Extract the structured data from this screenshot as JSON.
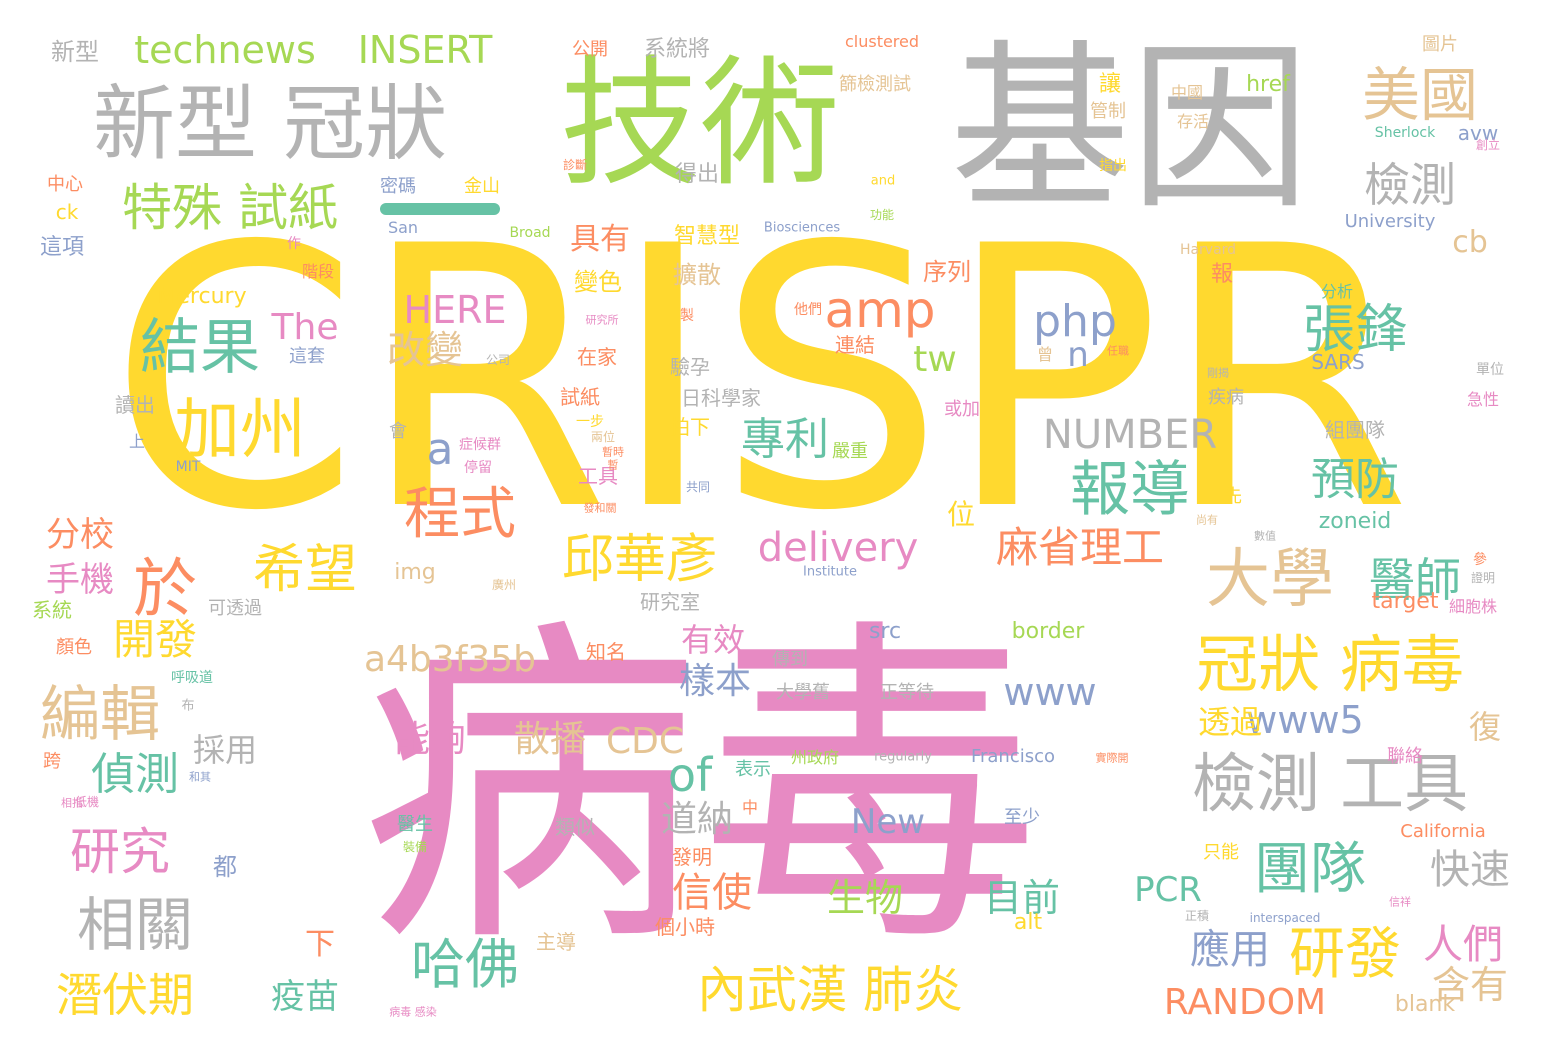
{
  "colors": {
    "pink": "#e78ac3",
    "yellow": "#ffd92f",
    "gray": "#b3b3b3",
    "green": "#a6d854",
    "teal": "#66c2a5",
    "orange": "#fc8d62",
    "blue": "#8da0cb",
    "tan": "#e5c494"
  },
  "words": [
    {
      "text": "CRISPR",
      "color": "yellow"
    },
    {
      "text": "病毒",
      "color": "pink"
    },
    {
      "text": "基因",
      "color": "gray"
    },
    {
      "text": "技術",
      "color": "green"
    },
    {
      "text": "新型 冠狀",
      "color": "gray"
    },
    {
      "text": "technews",
      "color": "green"
    },
    {
      "text": "INSERT",
      "color": "green"
    },
    {
      "text": "新型",
      "color": "gray"
    },
    {
      "text": "特殊 試紙",
      "color": "green"
    },
    {
      "text": "美國",
      "color": "tan"
    },
    {
      "text": "檢測",
      "color": "gray"
    },
    {
      "text": "結果",
      "color": "teal"
    },
    {
      "text": "加州",
      "color": "yellow"
    },
    {
      "text": "amp",
      "color": "orange"
    },
    {
      "text": "php",
      "color": "blue"
    },
    {
      "text": "HERE",
      "color": "pink"
    },
    {
      "text": "改變",
      "color": "tan"
    },
    {
      "text": "The",
      "color": "pink"
    },
    {
      "text": "tw",
      "color": "green"
    },
    {
      "text": "n",
      "color": "blue"
    },
    {
      "text": "張鋒",
      "color": "teal"
    },
    {
      "text": "報導",
      "color": "teal"
    },
    {
      "text": "程式",
      "color": "orange"
    },
    {
      "text": "專利",
      "color": "teal"
    },
    {
      "text": "a",
      "color": "blue"
    },
    {
      "text": "NUMBER",
      "color": "gray"
    },
    {
      "text": "預防",
      "color": "teal"
    },
    {
      "text": "大學",
      "color": "tan"
    },
    {
      "text": "於",
      "color": "orange"
    },
    {
      "text": "希望",
      "color": "yellow"
    },
    {
      "text": "邱華彥",
      "color": "yellow"
    },
    {
      "text": "delivery",
      "color": "pink"
    },
    {
      "text": "麻省理工",
      "color": "orange"
    },
    {
      "text": "醫師",
      "color": "teal"
    },
    {
      "text": "冠狀 病毒",
      "color": "yellow"
    },
    {
      "text": "a4b3f35b",
      "color": "tan"
    },
    {
      "text": "www",
      "color": "blue"
    },
    {
      "text": "www5",
      "color": "blue"
    },
    {
      "text": "of",
      "color": "teal"
    },
    {
      "text": "檢測 工具",
      "color": "gray"
    },
    {
      "text": "編輯",
      "color": "tan"
    },
    {
      "text": "開發",
      "color": "yellow"
    },
    {
      "text": "分校",
      "color": "orange"
    },
    {
      "text": "手機",
      "color": "pink"
    },
    {
      "text": "偵測",
      "color": "teal"
    },
    {
      "text": "研究",
      "color": "pink"
    },
    {
      "text": "相關",
      "color": "gray"
    },
    {
      "text": "潛伏期",
      "color": "yellow"
    },
    {
      "text": "團隊",
      "color": "teal"
    },
    {
      "text": "快速",
      "color": "gray"
    },
    {
      "text": "人們",
      "color": "pink"
    },
    {
      "text": "研發",
      "color": "yellow"
    },
    {
      "text": "含有",
      "color": "tan"
    },
    {
      "text": "應用",
      "color": "blue"
    },
    {
      "text": "RANDOM",
      "color": "orange"
    },
    {
      "text": "哈佛",
      "color": "teal"
    },
    {
      "text": "內武漢 肺炎",
      "color": "yellow"
    },
    {
      "text": "能夠",
      "color": "pink"
    },
    {
      "text": "散播",
      "color": "tan"
    },
    {
      "text": "CDC",
      "color": "tan"
    },
    {
      "text": "信使",
      "color": "orange"
    },
    {
      "text": "道納",
      "color": "gray"
    },
    {
      "text": "樣本",
      "color": "blue"
    },
    {
      "text": "有效",
      "color": "pink"
    },
    {
      "text": "生物",
      "color": "green"
    },
    {
      "text": "目前",
      "color": "teal"
    },
    {
      "text": "PCR",
      "color": "teal"
    },
    {
      "text": "New",
      "color": "blue"
    },
    {
      "text": "疫苗",
      "color": "teal"
    },
    {
      "text": "下",
      "color": "orange"
    },
    {
      "text": "採用",
      "color": "gray"
    },
    {
      "text": "透過",
      "color": "yellow"
    },
    {
      "text": "復",
      "color": "tan"
    },
    {
      "text": "cb",
      "color": "tan"
    },
    {
      "text": "具有",
      "color": "orange"
    },
    {
      "text": "位",
      "color": "yellow"
    },
    {
      "text": "img",
      "color": "tan"
    },
    {
      "text": "zoneid",
      "color": "teal"
    },
    {
      "text": "target",
      "color": "orange"
    },
    {
      "text": "src",
      "color": "blue"
    },
    {
      "text": "border",
      "color": "green"
    },
    {
      "text": "blank",
      "color": "tan"
    },
    {
      "text": "alt",
      "color": "yellow"
    },
    {
      "text": "Mercury",
      "color": "yellow"
    },
    {
      "text": "Francisco",
      "color": "blue"
    },
    {
      "text": "California",
      "color": "orange"
    },
    {
      "text": "University",
      "color": "blue"
    },
    {
      "text": "San",
      "color": "blue"
    },
    {
      "text": "href",
      "color": "green"
    },
    {
      "text": "avw",
      "color": "blue"
    },
    {
      "text": "ck",
      "color": "yellow"
    },
    {
      "text": "clustered",
      "color": "orange"
    },
    {
      "text": "Sherlock",
      "color": "teal"
    },
    {
      "text": "Biosciences",
      "color": "blue"
    },
    {
      "text": "Institute",
      "color": "blue"
    },
    {
      "text": "Broad",
      "color": "green"
    },
    {
      "text": "Harvard",
      "color": "tan"
    },
    {
      "text": "regularly",
      "color": "gray"
    },
    {
      "text": "MIT",
      "color": "blue"
    },
    {
      "text": "SARS",
      "color": "blue"
    },
    {
      "text": "interspaced",
      "color": "blue"
    },
    {
      "text": "and",
      "color": "yellow"
    },
    {
      "text": "系統將",
      "color": "gray"
    },
    {
      "text": "公開",
      "color": "orange"
    },
    {
      "text": "篩檢測試",
      "color": "tan"
    },
    {
      "text": "圖片",
      "color": "tan"
    },
    {
      "text": "讓",
      "color": "yellow"
    },
    {
      "text": "中國",
      "color": "tan"
    },
    {
      "text": "管制",
      "color": "tan"
    },
    {
      "text": "存活",
      "color": "tan"
    },
    {
      "text": "得出",
      "color": "gray"
    },
    {
      "text": "金山",
      "color": "yellow"
    },
    {
      "text": "密碼",
      "color": "blue"
    },
    {
      "text": "中心",
      "color": "orange"
    },
    {
      "text": "這項",
      "color": "blue"
    },
    {
      "text": "作",
      "color": "pink"
    },
    {
      "text": "階段",
      "color": "orange"
    },
    {
      "text": "變色",
      "color": "yellow"
    },
    {
      "text": "擴散",
      "color": "tan"
    },
    {
      "text": "序列",
      "color": "orange"
    },
    {
      "text": "報",
      "color": "orange"
    },
    {
      "text": "分析",
      "color": "teal"
    },
    {
      "text": "智慧型",
      "color": "yellow"
    },
    {
      "text": "在家",
      "color": "orange"
    },
    {
      "text": "這套",
      "color": "blue"
    },
    {
      "text": "連結",
      "color": "orange"
    },
    {
      "text": "驗孕",
      "color": "gray"
    },
    {
      "text": "讀出",
      "color": "gray"
    },
    {
      "text": "試紙",
      "color": "orange"
    },
    {
      "text": "日科學家",
      "color": "gray"
    },
    {
      "text": "拍下",
      "color": "yellow"
    },
    {
      "text": "或加",
      "color": "pink"
    },
    {
      "text": "疾病",
      "color": "gray"
    },
    {
      "text": "急性",
      "color": "pink"
    },
    {
      "text": "組團隊",
      "color": "gray"
    },
    {
      "text": "會",
      "color": "gray"
    },
    {
      "text": "上",
      "color": "blue"
    },
    {
      "text": "工具",
      "color": "pink"
    },
    {
      "text": "先",
      "color": "yellow"
    },
    {
      "text": "可透過",
      "color": "gray"
    },
    {
      "text": "研究室",
      "color": "gray"
    },
    {
      "text": "知名",
      "color": "orange"
    },
    {
      "text": "傳到",
      "color": "gray"
    },
    {
      "text": "大學舊",
      "color": "gray"
    },
    {
      "text": "正等待",
      "color": "gray"
    },
    {
      "text": "細胞株",
      "color": "pink"
    },
    {
      "text": "系統",
      "color": "green"
    },
    {
      "text": "顏色",
      "color": "orange"
    },
    {
      "text": "表示",
      "color": "teal"
    },
    {
      "text": "聯絡",
      "color": "pink"
    },
    {
      "text": "至少",
      "color": "blue"
    },
    {
      "text": "類似",
      "color": "gray"
    },
    {
      "text": "醫生",
      "color": "teal"
    },
    {
      "text": "都",
      "color": "blue"
    },
    {
      "text": "發明",
      "color": "orange"
    },
    {
      "text": "只能",
      "color": "yellow"
    },
    {
      "text": "個小時",
      "color": "orange"
    },
    {
      "text": "主導",
      "color": "tan"
    },
    {
      "text": "呼吸道",
      "color": "teal"
    },
    {
      "text": "跨",
      "color": "orange"
    },
    {
      "text": "州政府",
      "color": "green"
    },
    {
      "text": "中",
      "color": "orange"
    },
    {
      "text": "共同",
      "color": "blue"
    },
    {
      "text": "嚴重",
      "color": "green"
    },
    {
      "text": "停留",
      "color": "pink"
    },
    {
      "text": "症候群",
      "color": "pink"
    },
    {
      "text": "一步",
      "color": "yellow"
    },
    {
      "text": "創立",
      "color": "pink"
    },
    {
      "text": "單位",
      "color": "gray"
    },
    {
      "text": "指出",
      "color": "yellow"
    },
    {
      "text": "功能",
      "color": "green"
    },
    {
      "text": "他們",
      "color": "orange"
    },
    {
      "text": "公司",
      "color": "gray"
    },
    {
      "text": "製",
      "color": "orange"
    },
    {
      "text": "研究所",
      "color": "pink"
    },
    {
      "text": "診斷",
      "color": "orange"
    },
    {
      "text": "任職",
      "color": "orange"
    },
    {
      "text": "曾",
      "color": "tan"
    },
    {
      "text": "剛揭",
      "color": "gray"
    },
    {
      "text": "兩位",
      "color": "tan"
    },
    {
      "text": "發和關",
      "color": "orange"
    },
    {
      "text": "布",
      "color": "gray"
    },
    {
      "text": "病毒 感染",
      "color": "pink"
    },
    {
      "text": "正積",
      "color": "gray"
    },
    {
      "text": "暫時",
      "color": "orange"
    },
    {
      "text": "尚有",
      "color": "tan"
    },
    {
      "text": "數值",
      "color": "gray"
    },
    {
      "text": "參",
      "color": "orange"
    },
    {
      "text": "證明",
      "color": "gray"
    },
    {
      "text": "廣州",
      "color": "tan"
    },
    {
      "text": "實際開",
      "color": "orange"
    },
    {
      "text": "低機",
      "color": "pink"
    },
    {
      "text": "信祥",
      "color": "pink"
    },
    {
      "text": "和其",
      "color": "blue"
    },
    {
      "text": "相指",
      "color": "pink"
    },
    {
      "text": "裝備",
      "color": "green"
    },
    {
      "text": "暫",
      "color": "orange"
    }
  ]
}
